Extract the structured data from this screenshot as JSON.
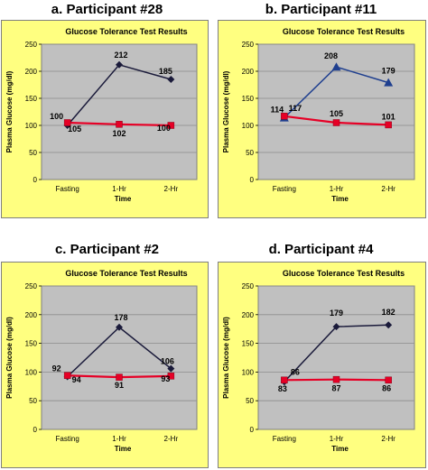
{
  "colors": {
    "frame_bg": "#ffff80",
    "plot_bg": "#c0c0c0",
    "grid": "#8c8c8c",
    "series_low": "#e60026",
    "series_low_marker": "#e60026",
    "series_high_dark": "#1a1a3a",
    "series_high_blue": "#1f3f8f"
  },
  "chart_data": [
    {
      "heading": "a. Participant #28",
      "type": "line",
      "title": "Glucose Tolerance Test Results",
      "xlabel": "Time",
      "ylabel": "Plasma Glucose (mg/dl)",
      "categories": [
        "Fasting",
        "1-Hr",
        "2-Hr"
      ],
      "ylim": [
        0,
        250
      ],
      "yticks": [
        0,
        50,
        100,
        150,
        200,
        250
      ],
      "grid": true,
      "series": [
        {
          "values": [
            100,
            212,
            185
          ],
          "labels": [
            "100",
            "212",
            "185"
          ],
          "color": "#1a1a3a",
          "marker": "diamond"
        },
        {
          "values": [
            105,
            102,
            100
          ],
          "labels": [
            "105",
            "102",
            "100"
          ],
          "color": "#e60026",
          "marker": "square"
        }
      ]
    },
    {
      "heading": "b.   Participant #11",
      "type": "line",
      "title": "Glucose Tolerance Test Results",
      "xlabel": "Time",
      "ylabel": "Plasma Glucose (mg/dl)",
      "categories": [
        "Fasting",
        "1-Hr",
        "2-Hr"
      ],
      "ylim": [
        0,
        250
      ],
      "yticks": [
        0,
        50,
        100,
        150,
        200,
        250
      ],
      "grid": true,
      "series": [
        {
          "values": [
            114,
            208,
            179
          ],
          "labels": [
            "114",
            "208",
            "179"
          ],
          "color": "#1f3f8f",
          "marker": "triangle"
        },
        {
          "values": [
            117,
            105,
            101
          ],
          "labels": [
            "117",
            "105",
            "101"
          ],
          "color": "#e60026",
          "marker": "square"
        }
      ]
    },
    {
      "heading": "c. Participant #2",
      "type": "line",
      "title": "Glucose Tolerance Test Results",
      "xlabel": "Time",
      "ylabel": "Plasma Glucose (mg/dl)",
      "categories": [
        "Fasting",
        "1-Hr",
        "2-Hr"
      ],
      "ylim": [
        0,
        250
      ],
      "yticks": [
        0,
        50,
        100,
        150,
        200,
        250
      ],
      "grid": true,
      "series": [
        {
          "values": [
            92,
            178,
            106
          ],
          "labels": [
            "92",
            "178",
            "106"
          ],
          "color": "#1a1a3a",
          "marker": "diamond"
        },
        {
          "values": [
            94,
            91,
            93
          ],
          "labels": [
            "94",
            "91",
            "93"
          ],
          "color": "#e60026",
          "marker": "square"
        }
      ]
    },
    {
      "heading": "d. Participant #4",
      "type": "line",
      "title": "Glucose Tolerance Test Results",
      "xlabel": "Time",
      "ylabel": "Plasma Glucose (mg/dl)",
      "categories": [
        "Fasting",
        "1-Hr",
        "2-Hr"
      ],
      "ylim": [
        0,
        250
      ],
      "yticks": [
        0,
        50,
        100,
        150,
        200,
        250
      ],
      "grid": true,
      "series": [
        {
          "values": [
            83,
            179,
            182
          ],
          "labels": [
            "83",
            "179",
            "182"
          ],
          "color": "#1a1a3a",
          "marker": "diamond"
        },
        {
          "values": [
            86,
            87,
            86
          ],
          "labels": [
            "86",
            "87",
            "86"
          ],
          "color": "#e60026",
          "marker": "square"
        }
      ]
    }
  ]
}
